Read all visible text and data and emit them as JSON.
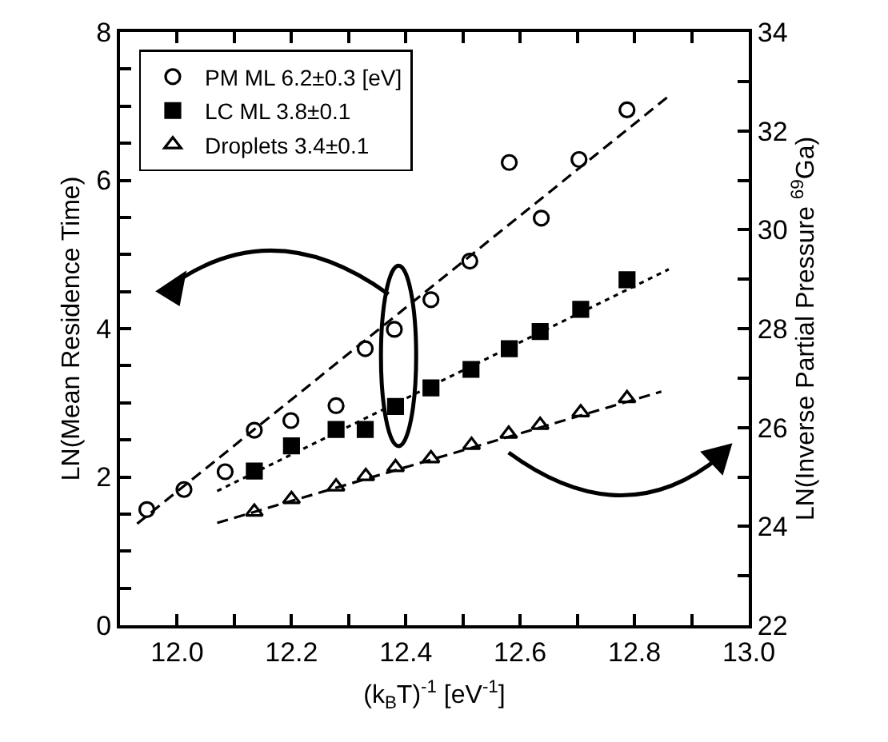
{
  "chart_data": {
    "type": "scatter",
    "xlabel": "(k$_{B}$T)$^{-1}$ [eV$^{-1}$]",
    "ylabel": "LN(Mean Residence Time)",
    "y2label": "LN(Inverse Partial Pressure $^{69}$Ga)",
    "xlim": [
      11.9,
      13.0
    ],
    "xticks": [
      {
        "value": 12.0,
        "label": "12.0"
      },
      {
        "value": 12.1,
        "label": null
      },
      {
        "value": 12.2,
        "label": "12.2"
      },
      {
        "value": 12.3,
        "label": null
      },
      {
        "value": 12.4,
        "label": "12.4"
      },
      {
        "value": 12.5,
        "label": null
      },
      {
        "value": 12.6,
        "label": "12.6"
      },
      {
        "value": 12.7,
        "label": null
      },
      {
        "value": 12.8,
        "label": "12.8"
      },
      {
        "value": 12.9,
        "label": null
      },
      {
        "value": 13.0,
        "label": "13.0"
      }
    ],
    "ylim": [
      0,
      8
    ],
    "yticks": [
      0,
      {
        "value": 0.5,
        "label": null
      },
      {
        "value": 1,
        "label": null
      },
      {
        "value": 1.5,
        "label": null
      },
      2,
      {
        "value": 2.5,
        "label": null
      },
      {
        "value": 3,
        "label": null
      },
      {
        "value": 3.5,
        "label": null
      },
      4,
      {
        "value": 4.5,
        "label": null
      },
      {
        "value": 5,
        "label": null
      },
      {
        "value": 5.5,
        "label": null
      },
      6,
      {
        "value": 6.5,
        "label": null
      },
      {
        "value": 7,
        "label": null
      },
      {
        "value": 7.5,
        "label": null
      },
      8
    ],
    "y2lim": [
      22,
      34
    ],
    "y2ticks": [
      22,
      {
        "value": 23,
        "label": null
      },
      24,
      {
        "value": 25,
        "label": null
      },
      26,
      {
        "value": 27,
        "label": null
      },
      28,
      {
        "value": 29,
        "label": null
      },
      30,
      {
        "value": 31,
        "label": null
      },
      32,
      {
        "value": 33,
        "label": null
      },
      34
    ],
    "legend": "top left",
    "series": [
      {
        "name": "PM ML 6.2±0.3 [eV]",
        "marker": "circle",
        "color": "#000000",
        "x": [
          11.947,
          12.012,
          12.084,
          12.135,
          12.199,
          12.278,
          12.329,
          12.38,
          12.444,
          12.512,
          12.581,
          12.637,
          12.703,
          12.787
        ],
        "values": [
          1.56,
          1.83,
          2.07,
          2.63,
          2.76,
          2.96,
          3.73,
          3.99,
          4.39,
          4.91,
          6.24,
          5.49,
          6.28,
          6.95
        ]
      },
      {
        "name": "LC ML 3.8±0.1",
        "marker": "square",
        "color": "#000000",
        "x": [
          12.135,
          12.2,
          12.278,
          12.329,
          12.382,
          12.444,
          12.514,
          12.581,
          12.635,
          12.706,
          12.787
        ],
        "values": [
          2.08,
          2.42,
          2.64,
          2.64,
          2.95,
          3.2,
          3.45,
          3.73,
          3.96,
          4.26,
          4.66
        ]
      },
      {
        "name": "Droplets 3.4±0.1",
        "marker": "triangle",
        "color": "#000000",
        "x": [
          12.135,
          12.2,
          12.278,
          12.33,
          12.382,
          12.444,
          12.515,
          12.58,
          12.635,
          12.706,
          12.787
        ],
        "values": [
          1.53,
          1.7,
          1.87,
          2.01,
          2.13,
          2.25,
          2.43,
          2.58,
          2.7,
          2.87,
          3.06
        ]
      },
      {
        "type": "line",
        "line_style": "dashed",
        "color": "#000000",
        "x": [
          11.93,
          12.864
        ],
        "values": [
          1.37,
          7.16
        ]
      },
      {
        "type": "line",
        "line_style": "dotted",
        "color": "#000000",
        "x": [
          12.07,
          12.86
        ],
        "values": [
          1.81,
          4.8
        ]
      },
      {
        "type": "line",
        "line_style": "dashed",
        "color": "#000000",
        "x": [
          12.07,
          12.847
        ],
        "values": [
          1.38,
          3.15
        ]
      }
    ]
  }
}
